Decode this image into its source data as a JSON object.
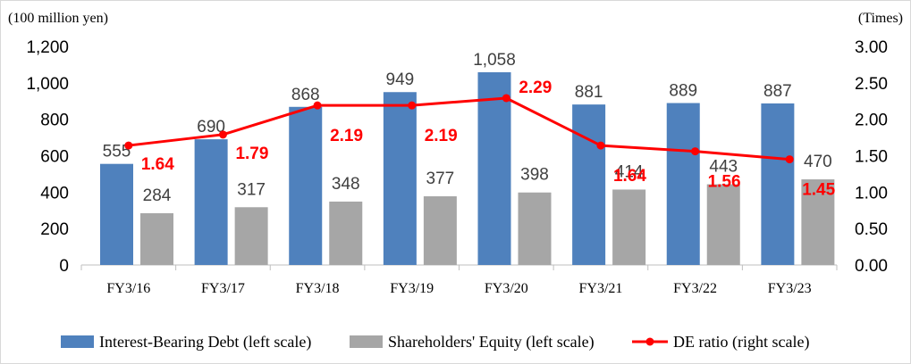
{
  "chart_data": {
    "type": "bar",
    "categories": [
      "FY3/16",
      "FY3/17",
      "FY3/18",
      "FY3/19",
      "FY3/20",
      "FY3/21",
      "FY3/22",
      "FY3/23"
    ],
    "series": [
      {
        "name": "Interest-Bearing Debt (left scale)",
        "type": "bar",
        "axis": "left",
        "color": "#4f81bd",
        "values": [
          555,
          690,
          868,
          949,
          1058,
          881,
          889,
          887
        ],
        "labels": [
          "555",
          "690",
          "868",
          "949",
          "1,058",
          "881",
          "889",
          "887"
        ]
      },
      {
        "name": "Shareholders' Equity (left scale)",
        "type": "bar",
        "axis": "left",
        "color": "#a6a6a6",
        "values": [
          284,
          317,
          348,
          377,
          398,
          414,
          443,
          470
        ],
        "labels": [
          "284",
          "317",
          "348",
          "377",
          "398",
          "414",
          "443",
          "470"
        ]
      },
      {
        "name": "DE ratio (right scale)",
        "type": "line",
        "axis": "right",
        "color": "#ff0000",
        "values": [
          1.64,
          1.79,
          2.19,
          2.19,
          2.29,
          1.64,
          1.56,
          1.45
        ],
        "labels": [
          "1.64",
          "1.79",
          "2.19",
          "2.19",
          "2.29",
          "1.64",
          "1.56",
          "1.45"
        ]
      }
    ],
    "y_left": {
      "unit_label": "(100 million yen)",
      "ylim": [
        0,
        1200
      ],
      "ticks": [
        0,
        200,
        400,
        600,
        800,
        1000,
        1200
      ],
      "tick_labels": [
        "0",
        "200",
        "400",
        "600",
        "800",
        "1,000",
        "1,200"
      ]
    },
    "y_right": {
      "unit_label": "(Times)",
      "ylim": [
        0,
        3.0
      ],
      "ticks": [
        0,
        0.5,
        1.0,
        1.5,
        2.0,
        2.5,
        3.0
      ],
      "tick_labels": [
        "0.00",
        "0.50",
        "1.00",
        "1.50",
        "2.00",
        "2.50",
        "3.00"
      ]
    },
    "grid": false,
    "legend_position": "bottom",
    "data_label_color": "#404040",
    "line_label_color": "#ff0000"
  }
}
